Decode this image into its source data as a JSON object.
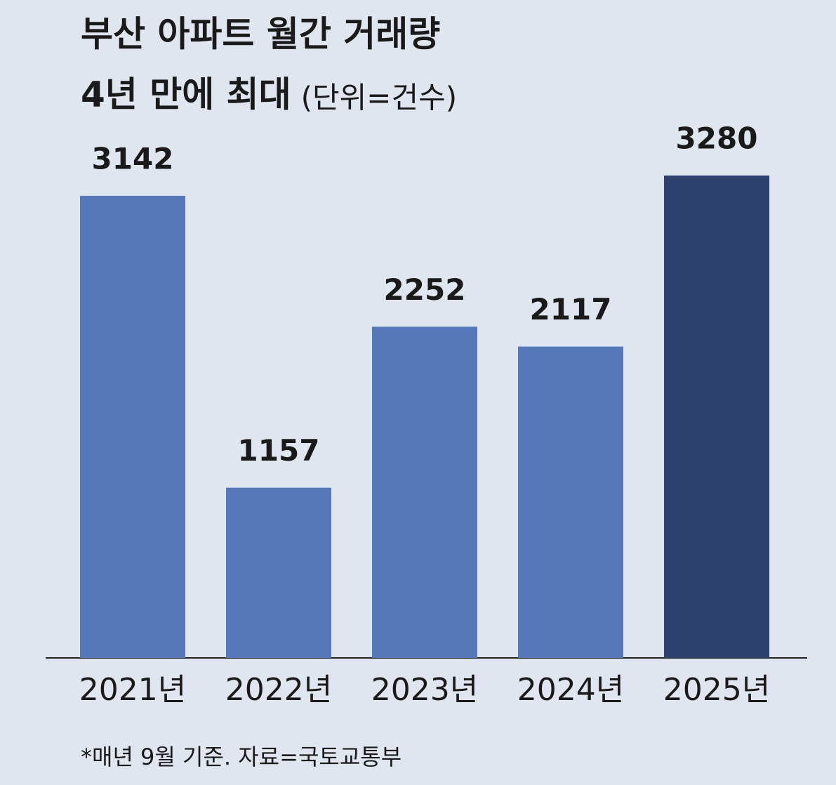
{
  "chart_data": {
    "type": "bar",
    "title": "부산 아파트 월간 거래량",
    "title_line2": "4년 만에 최대",
    "subtitle": "(단위=건수)",
    "categories": [
      "2021년",
      "2022년",
      "2023년",
      "2024년",
      "2025년"
    ],
    "values": [
      3142,
      1157,
      2252,
      2117,
      3280
    ],
    "colors": [
      "#5578b9",
      "#5578b9",
      "#5578b9",
      "#5578b9",
      "#2c416e"
    ],
    "note": "*매년 9월 기준. 자료=국토교통부"
  }
}
